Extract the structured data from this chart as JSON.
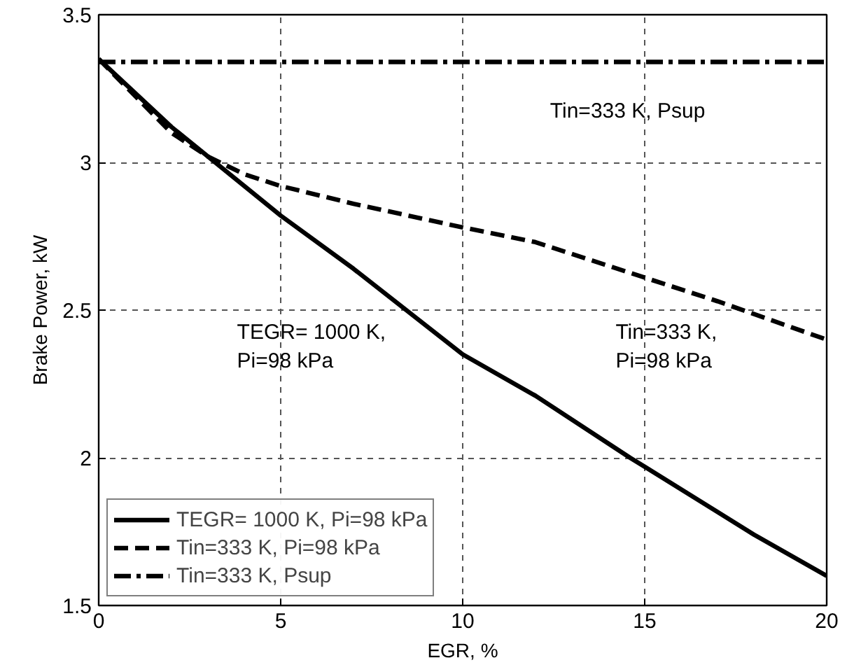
{
  "chart_data": {
    "type": "line",
    "xlabel": "EGR, %",
    "ylabel": "Brake Power, kW",
    "xlim": [
      0,
      20
    ],
    "ylim": [
      1.5,
      3.5
    ],
    "xticks": [
      0,
      5,
      10,
      15,
      20
    ],
    "yticks": [
      1.5,
      2,
      2.5,
      3,
      3.5
    ],
    "grid": true,
    "legend": "bottom left",
    "marker": "none",
    "series": [
      {
        "name": "TEGR= 1000 K, Pi=98 kPa",
        "color": "#000000",
        "line_style": "solid",
        "x": [
          0,
          2,
          4,
          5,
          7,
          10,
          12,
          14.6,
          15,
          18,
          20
        ],
        "values": [
          3.35,
          3.12,
          2.92,
          2.82,
          2.64,
          2.35,
          2.21,
          2.0,
          1.97,
          1.74,
          1.6
        ]
      },
      {
        "name": "Tin=333 K, Pi=98 kPa",
        "color": "#000000",
        "line_style": "dashed",
        "x": [
          0,
          2,
          3,
          4,
          5,
          7,
          10,
          12,
          15,
          17,
          20
        ],
        "values": [
          3.35,
          3.1,
          3.02,
          2.96,
          2.92,
          2.86,
          2.78,
          2.73,
          2.61,
          2.53,
          2.4
        ]
      },
      {
        "name": "Tin=333 K, Psup",
        "color": "#000000",
        "line_style": "dashdot",
        "x": [
          0,
          20
        ],
        "values": [
          3.34,
          3.34
        ]
      }
    ],
    "annotations": [
      "Tin=333 K, Psup",
      "TEGR= 1000 K,\n Pi=98 kPa",
      "Tin=333 K,\nPi=98 kPa"
    ]
  }
}
